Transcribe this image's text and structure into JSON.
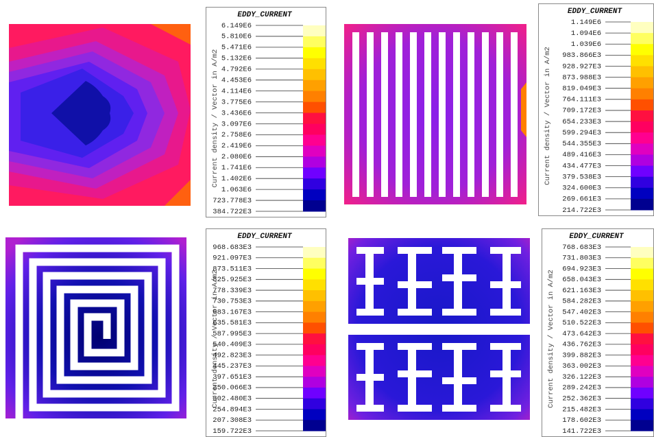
{
  "panels": [
    {
      "legend": {
        "title": "EDDY_CURRENT",
        "axis_label": "Current density / Vector in A/m2",
        "levels": [
          "6.149E6",
          "5.810E6",
          "5.471E6",
          "5.132E6",
          "4.792E6",
          "4.453E6",
          "4.114E6",
          "3.775E6",
          "3.436E6",
          "3.097E6",
          "2.758E6",
          "2.419E6",
          "2.080E6",
          "1.741E6",
          "1.402E6",
          "1.063E6",
          "723.778E3",
          "384.722E3"
        ]
      }
    },
    {
      "legend": {
        "title": "EDDY_CURRENT",
        "axis_label": "Current density / Vector in A/m2",
        "levels": [
          "1.149E6",
          "1.094E6",
          "1.039E6",
          "983.866E3",
          "928.927E3",
          "873.988E3",
          "819.049E3",
          "764.111E3",
          "709.172E3",
          "654.233E3",
          "599.294E3",
          "544.355E3",
          "489.416E3",
          "434.477E3",
          "379.538E3",
          "324.600E3",
          "269.661E3",
          "214.722E3"
        ]
      }
    },
    {
      "legend": {
        "title": "EDDY_CURRENT",
        "axis_label": "Current density / Vector in A/m2",
        "levels": [
          "968.683E3",
          "921.097E3",
          "873.511E3",
          "825.925E3",
          "778.339E3",
          "730.753E3",
          "683.167E3",
          "635.581E3",
          "587.995E3",
          "540.409E3",
          "492.823E3",
          "445.237E3",
          "397.651E3",
          "350.066E3",
          "302.480E3",
          "254.894E3",
          "207.308E3",
          "159.722E3"
        ]
      }
    },
    {
      "legend": {
        "title": "EDDY_CURRENT",
        "axis_label": "Current density / Vector in A/m2",
        "levels": [
          "768.683E3",
          "731.803E3",
          "694.923E3",
          "658.043E3",
          "621.163E3",
          "584.282E3",
          "547.402E3",
          "510.522E3",
          "473.642E3",
          "436.762E3",
          "399.882E3",
          "363.002E3",
          "326.122E3",
          "289.242E3",
          "252.362E3",
          "215.482E3",
          "178.602E3",
          "141.722E3"
        ]
      }
    }
  ]
}
